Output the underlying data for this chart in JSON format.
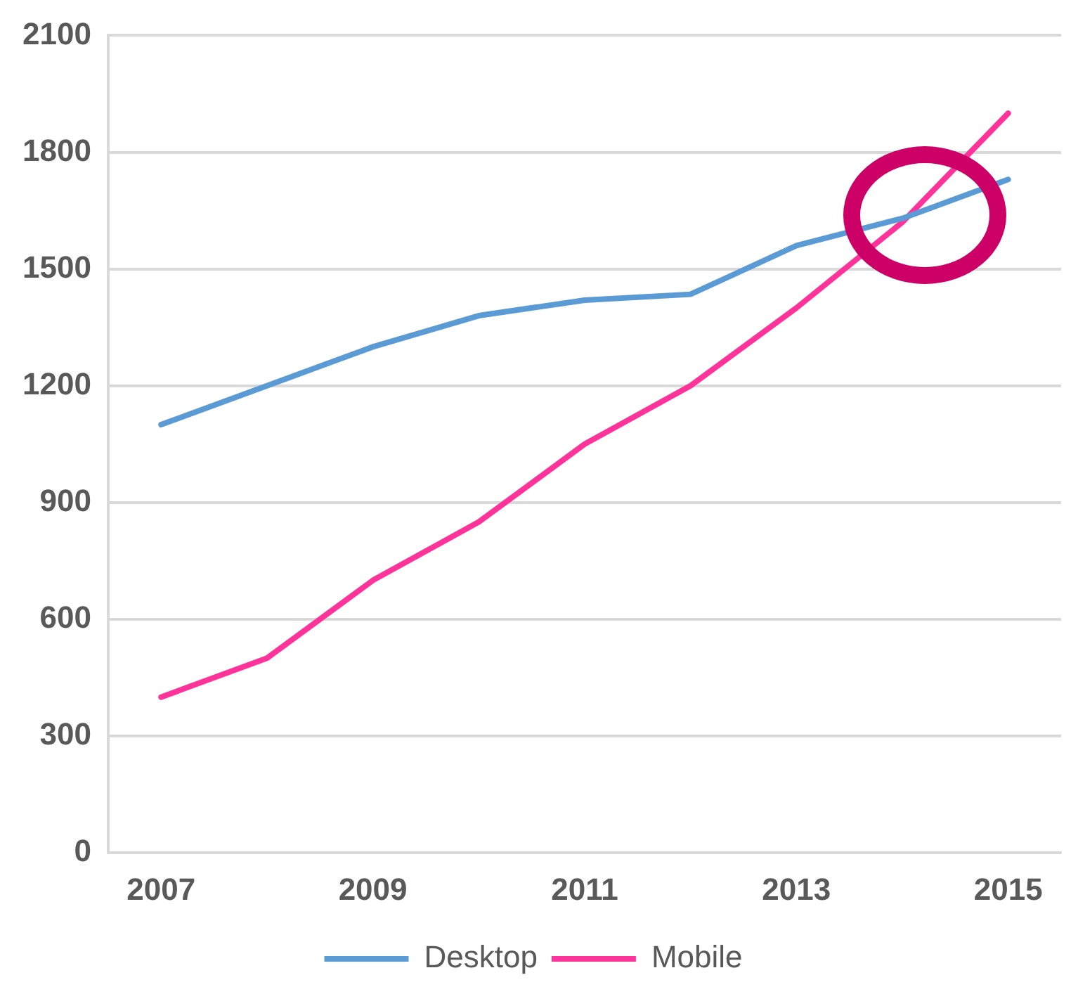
{
  "chart_data": {
    "type": "line",
    "categories": [
      "2007",
      null,
      "2009",
      null,
      "2011",
      null,
      "2013",
      null,
      "2015"
    ],
    "series": [
      {
        "name": "Desktop",
        "color": "#5b9bd5",
        "values": [
          1100,
          1200,
          1300,
          1380,
          1420,
          1435,
          1560,
          1630,
          1730
        ]
      },
      {
        "name": "Mobile",
        "color": "#ff3399",
        "values": [
          400,
          500,
          700,
          850,
          1050,
          1200,
          1400,
          1620,
          1900
        ]
      }
    ],
    "ylim": [
      0,
      2100
    ],
    "yticks": [
      0,
      300,
      600,
      900,
      1200,
      1500,
      1800,
      2100
    ],
    "grid": "y",
    "legend": "bottom",
    "marker": "none",
    "line_style": "solid"
  }
}
